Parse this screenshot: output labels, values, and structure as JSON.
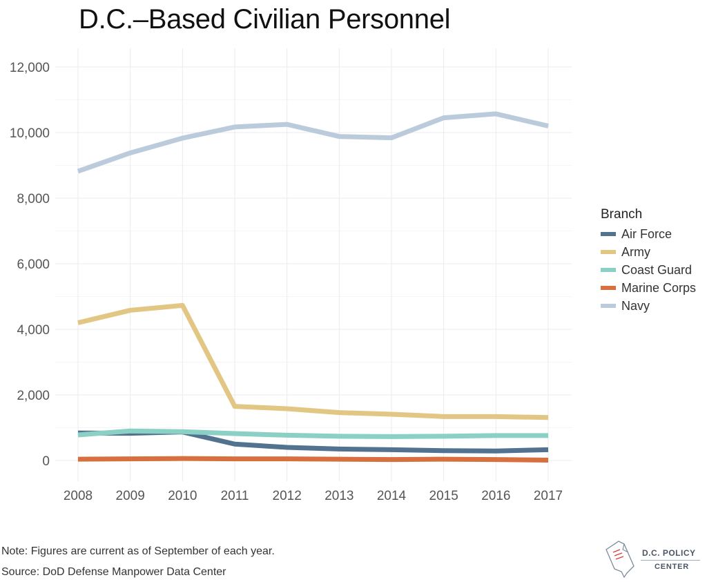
{
  "chart_data": {
    "type": "line",
    "title": "D.C.–Based Civilian Personnel",
    "xlabel": "",
    "ylabel": "",
    "x": [
      2008,
      2009,
      2010,
      2011,
      2012,
      2013,
      2014,
      2015,
      2016,
      2017
    ],
    "x_tick_labels": [
      "2008",
      "2009",
      "2010",
      "2011",
      "2012",
      "2013",
      "2014",
      "2015",
      "2016",
      "2017"
    ],
    "ylim": [
      0,
      12000
    ],
    "y_ticks": [
      0,
      2000,
      4000,
      6000,
      8000,
      10000,
      12000
    ],
    "y_tick_labels": [
      "0",
      "2,000",
      "4,000",
      "6,000",
      "8,000",
      "10,000",
      "12,000"
    ],
    "grid": true,
    "legend": {
      "title": "Branch",
      "placement": "right"
    },
    "series": [
      {
        "name": "Air Force",
        "color": "#52728f",
        "values": [
          840,
          830,
          870,
          500,
          400,
          350,
          330,
          300,
          290,
          330
        ]
      },
      {
        "name": "Army",
        "color": "#e2c683",
        "values": [
          4200,
          4580,
          4730,
          1650,
          1580,
          1460,
          1410,
          1340,
          1340,
          1310
        ]
      },
      {
        "name": "Coast Guard",
        "color": "#8ad0c4",
        "values": [
          780,
          900,
          880,
          820,
          770,
          740,
          730,
          740,
          760,
          760
        ]
      },
      {
        "name": "Marine Corps",
        "color": "#d86f3e",
        "values": [
          40,
          50,
          60,
          50,
          50,
          40,
          30,
          40,
          30,
          10
        ]
      },
      {
        "name": "Navy",
        "color": "#bccbdb",
        "values": [
          8820,
          9380,
          9830,
          10170,
          10250,
          9880,
          9840,
          10450,
          10570,
          10200
        ]
      }
    ]
  },
  "footer": {
    "note": "Note: Figures are current as of September of each year.",
    "source": "Source: DoD Defense Manpower Data Center"
  },
  "logo": {
    "line1": "D.C. POLICY",
    "line2": "CENTER",
    "icon": "dc-map-document-icon"
  }
}
